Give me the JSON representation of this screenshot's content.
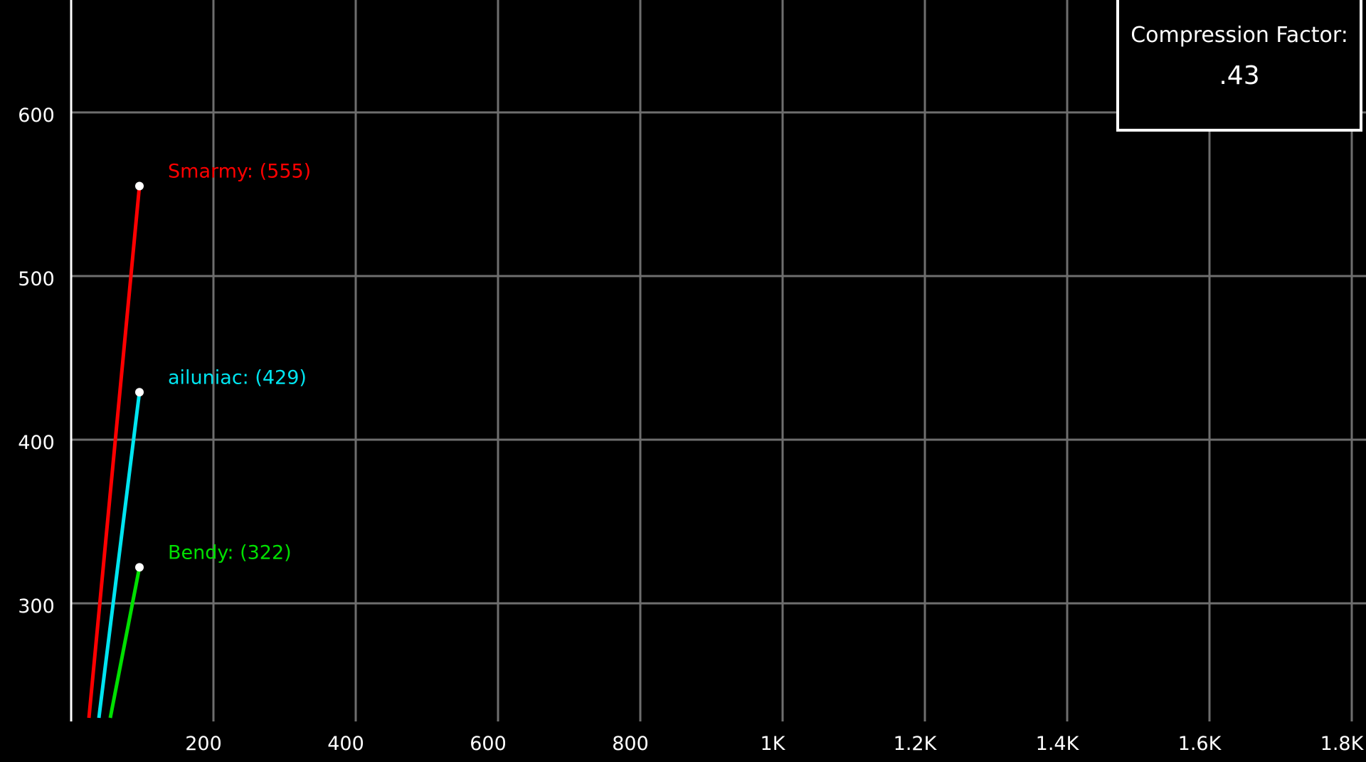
{
  "chart_data": {
    "type": "line",
    "title": "",
    "xlabel": "",
    "ylabel": "",
    "xlim": [
      0,
      1800
    ],
    "ylim": [
      230,
      665
    ],
    "grid": true,
    "x_ticks": [
      {
        "value": 200,
        "label": "200"
      },
      {
        "value": 400,
        "label": "400"
      },
      {
        "value": 600,
        "label": "600"
      },
      {
        "value": 800,
        "label": "800"
      },
      {
        "value": 1000,
        "label": "1K"
      },
      {
        "value": 1200,
        "label": "1.2K"
      },
      {
        "value": 1400,
        "label": "1.4K"
      },
      {
        "value": 1600,
        "label": "1.6K"
      },
      {
        "value": 1800,
        "label": "1.8K"
      }
    ],
    "y_ticks": [
      {
        "value": 300,
        "label": "300"
      },
      {
        "value": 400,
        "label": "400"
      },
      {
        "value": 500,
        "label": "500"
      },
      {
        "value": 600,
        "label": "600"
      }
    ],
    "series": [
      {
        "name": "Smarmy",
        "label": "Smarmy: (555)",
        "color": "#ff0000",
        "x": [
          25,
          96
        ],
        "y": [
          230,
          555
        ]
      },
      {
        "name": "ailuniac",
        "label": "ailuniac: (429)",
        "color": "#00e5f0",
        "x": [
          39,
          96
        ],
        "y": [
          230,
          429
        ]
      },
      {
        "name": "Bendy",
        "label": "Bendy: (322)",
        "color": "#00e000",
        "x": [
          55,
          96
        ],
        "y": [
          230,
          322
        ]
      }
    ]
  },
  "compression_box": {
    "title": "Compression Factor:",
    "value": ".43"
  }
}
